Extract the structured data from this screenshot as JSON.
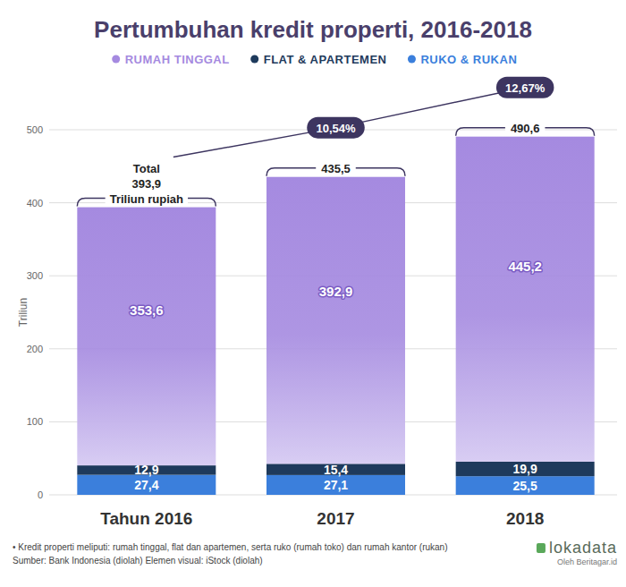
{
  "chart_data": {
    "type": "bar",
    "title": "Pertumbuhan kredit properti, 2016-2018",
    "y_label": "Triliun",
    "categories": [
      "Tahun 2016",
      "2017",
      "2018"
    ],
    "series": [
      {
        "name": "RUMAH TINGGAL",
        "color": "#a58ae0",
        "values": [
          353.6,
          392.9,
          445.2
        ],
        "value_labels": [
          "353,6",
          "392,9",
          "445,2"
        ]
      },
      {
        "name": "FLAT & APARTEMEN",
        "color": "#1e3a5c",
        "values": [
          12.9,
          15.4,
          19.9
        ],
        "value_labels": [
          "12,9",
          "15,4",
          "19,9"
        ]
      },
      {
        "name": "RUKO & RUKAN",
        "color": "#3b7fdc",
        "values": [
          27.4,
          27.1,
          25.5
        ],
        "value_labels": [
          "27,4",
          "27,1",
          "25,5"
        ]
      }
    ],
    "stacked": true,
    "data_labels": true,
    "legend": "top",
    "grid": true,
    "ylim": [
      0,
      500
    ],
    "yticks": [
      0,
      100,
      200,
      300,
      400,
      500
    ],
    "totals": {
      "values": [
        393.9,
        435.5,
        490.6
      ],
      "value_labels": [
        "393,9",
        "435,5",
        "490,6"
      ]
    },
    "total_prefix": "Total",
    "total_unit": "Triliun rupiah",
    "growth": {
      "values": [
        10.54,
        12.67
      ],
      "value_labels": [
        "10,54%",
        "12,67%"
      ]
    },
    "notes": [
      "• Kredit properti meliputi: rumah tinggal, flat dan apartemen, serta ruko (rumah toko) dan rumah kantor (rukan)",
      "Sumber: Bank Indonesia (diolah) Elemen visual: iStock (diolah)"
    ],
    "logo": "lokadata",
    "logo_sub": "Oleh Beritagar.id"
  }
}
